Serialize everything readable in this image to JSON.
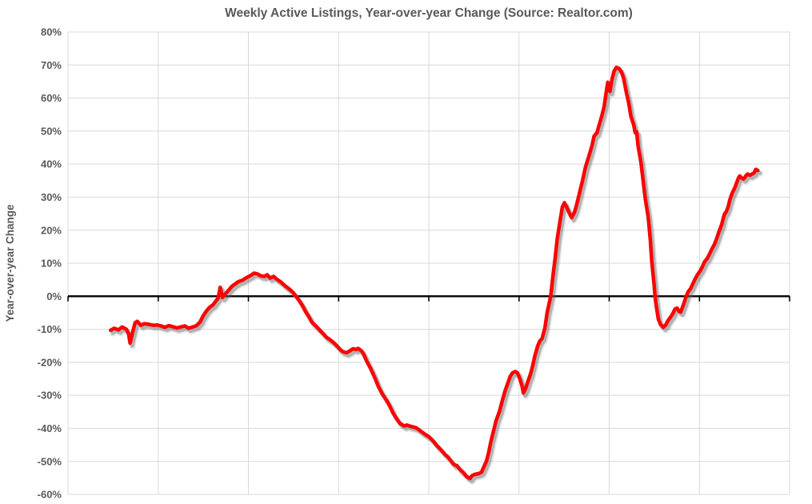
{
  "page": {
    "background_color": "#ffffff"
  },
  "chart_data": {
    "type": "line",
    "title": "Weekly Active Listings, Year-over-year Change (Source: Realtor.com)",
    "xlabel": "",
    "ylabel": "Year-over-year Change",
    "ylim": [
      -60,
      80
    ],
    "y_tick_step": 10,
    "y_tick_labels": [
      "80%",
      "70%",
      "60%",
      "50%",
      "40%",
      "30%",
      "20%",
      "10%",
      "0%",
      "-10%",
      "-20%",
      "-30%",
      "-40%",
      "-50%",
      "-60%"
    ],
    "x_axis": {
      "tick_labels_visible": false,
      "gridline_intervals": 8,
      "zero_axis_color": "#000000",
      "zero_axis_has_tick_marks": true
    },
    "grid": true,
    "gridline_color": "#d9d9d9",
    "legend": "none",
    "title_color": "#595959",
    "axis_text_color": "#595959",
    "series": [
      {
        "name": "Weekly active listings, year-over-year change",
        "color": "#ff0000",
        "line_width": 4.5,
        "drop_shadow": true,
        "x_unit": "fraction of x-axis (no x labels shown in chart)",
        "y_unit": "percent",
        "points": [
          [
            0.059,
            -10.3
          ],
          [
            0.064,
            -9.7
          ],
          [
            0.07,
            -10.2
          ],
          [
            0.075,
            -9.3
          ],
          [
            0.081,
            -10.0
          ],
          [
            0.084,
            -11.5
          ],
          [
            0.086,
            -14.2
          ],
          [
            0.09,
            -10.5
          ],
          [
            0.093,
            -8.0
          ],
          [
            0.096,
            -7.6
          ],
          [
            0.101,
            -8.8
          ],
          [
            0.106,
            -8.3
          ],
          [
            0.112,
            -8.5
          ],
          [
            0.118,
            -8.8
          ],
          [
            0.123,
            -8.7
          ],
          [
            0.129,
            -9.0
          ],
          [
            0.134,
            -9.4
          ],
          [
            0.14,
            -8.9
          ],
          [
            0.145,
            -9.2
          ],
          [
            0.151,
            -9.6
          ],
          [
            0.156,
            -9.3
          ],
          [
            0.162,
            -9.0
          ],
          [
            0.167,
            -9.7
          ],
          [
            0.173,
            -9.3
          ],
          [
            0.178,
            -8.9
          ],
          [
            0.183,
            -7.8
          ],
          [
            0.187,
            -6.0
          ],
          [
            0.192,
            -4.4
          ],
          [
            0.196,
            -3.4
          ],
          [
            0.201,
            -2.6
          ],
          [
            0.205,
            -1.4
          ],
          [
            0.208,
            -0.6
          ],
          [
            0.211,
            2.7
          ],
          [
            0.214,
            -0.4
          ],
          [
            0.218,
            0.7
          ],
          [
            0.223,
            1.9
          ],
          [
            0.227,
            3.0
          ],
          [
            0.232,
            3.8
          ],
          [
            0.236,
            4.4
          ],
          [
            0.242,
            4.9
          ],
          [
            0.247,
            5.6
          ],
          [
            0.253,
            6.3
          ],
          [
            0.258,
            7.0
          ],
          [
            0.263,
            6.7
          ],
          [
            0.267,
            6.2
          ],
          [
            0.272,
            6.0
          ],
          [
            0.276,
            6.5
          ],
          [
            0.28,
            5.5
          ],
          [
            0.285,
            6.0
          ],
          [
            0.289,
            5.2
          ],
          [
            0.295,
            4.3
          ],
          [
            0.3,
            3.3
          ],
          [
            0.306,
            2.3
          ],
          [
            0.312,
            1.1
          ],
          [
            0.316,
            0.0
          ],
          [
            0.32,
            -1.2
          ],
          [
            0.325,
            -2.9
          ],
          [
            0.329,
            -4.6
          ],
          [
            0.334,
            -6.3
          ],
          [
            0.338,
            -7.9
          ],
          [
            0.344,
            -9.1
          ],
          [
            0.349,
            -10.3
          ],
          [
            0.354,
            -11.4
          ],
          [
            0.358,
            -12.4
          ],
          [
            0.364,
            -13.3
          ],
          [
            0.368,
            -14.0
          ],
          [
            0.373,
            -15.1
          ],
          [
            0.377,
            -16.1
          ],
          [
            0.381,
            -16.8
          ],
          [
            0.386,
            -17.1
          ],
          [
            0.39,
            -16.6
          ],
          [
            0.395,
            -15.9
          ],
          [
            0.399,
            -16.1
          ],
          [
            0.402,
            -15.8
          ],
          [
            0.407,
            -16.6
          ],
          [
            0.41,
            -17.7
          ],
          [
            0.414,
            -19.7
          ],
          [
            0.419,
            -21.7
          ],
          [
            0.425,
            -24.6
          ],
          [
            0.43,
            -27.3
          ],
          [
            0.436,
            -29.8
          ],
          [
            0.441,
            -31.4
          ],
          [
            0.446,
            -33.3
          ],
          [
            0.45,
            -35.2
          ],
          [
            0.455,
            -37.0
          ],
          [
            0.46,
            -38.5
          ],
          [
            0.466,
            -39.3
          ],
          [
            0.47,
            -39.0
          ],
          [
            0.475,
            -39.4
          ],
          [
            0.479,
            -39.6
          ],
          [
            0.483,
            -39.9
          ],
          [
            0.489,
            -40.9
          ],
          [
            0.494,
            -41.7
          ],
          [
            0.5,
            -42.5
          ],
          [
            0.506,
            -43.8
          ],
          [
            0.511,
            -45.2
          ],
          [
            0.517,
            -46.5
          ],
          [
            0.522,
            -47.8
          ],
          [
            0.527,
            -48.8
          ],
          [
            0.531,
            -50.0
          ],
          [
            0.535,
            -51.0
          ],
          [
            0.539,
            -51.3
          ],
          [
            0.543,
            -52.4
          ],
          [
            0.548,
            -53.4
          ],
          [
            0.552,
            -54.5
          ],
          [
            0.557,
            -55.2
          ],
          [
            0.56,
            -54.3
          ],
          [
            0.564,
            -53.9
          ],
          [
            0.569,
            -53.7
          ],
          [
            0.573,
            -53.3
          ],
          [
            0.576,
            -51.8
          ],
          [
            0.58,
            -49.8
          ],
          [
            0.583,
            -47.2
          ],
          [
            0.586,
            -44.0
          ],
          [
            0.59,
            -40.5
          ],
          [
            0.593,
            -37.8
          ],
          [
            0.598,
            -34.8
          ],
          [
            0.602,
            -31.5
          ],
          [
            0.606,
            -28.5
          ],
          [
            0.61,
            -26.0
          ],
          [
            0.613,
            -24.2
          ],
          [
            0.616,
            -23.2
          ],
          [
            0.62,
            -22.8
          ],
          [
            0.623,
            -23.2
          ],
          [
            0.626,
            -25.0
          ],
          [
            0.629,
            -27.0
          ],
          [
            0.631,
            -29.3
          ],
          [
            0.634,
            -28.0
          ],
          [
            0.637,
            -26.0
          ],
          [
            0.641,
            -23.5
          ],
          [
            0.644,
            -21.0
          ],
          [
            0.647,
            -18.0
          ],
          [
            0.651,
            -15.0
          ],
          [
            0.654,
            -13.5
          ],
          [
            0.657,
            -12.8
          ],
          [
            0.661,
            -9.5
          ],
          [
            0.664,
            -5.0
          ],
          [
            0.669,
            0.0
          ],
          [
            0.672,
            6.0
          ],
          [
            0.675,
            11.5
          ],
          [
            0.678,
            17.5
          ],
          [
            0.682,
            23.0
          ],
          [
            0.685,
            27.0
          ],
          [
            0.688,
            28.3
          ],
          [
            0.692,
            26.5
          ],
          [
            0.695,
            25.0
          ],
          [
            0.698,
            23.8
          ],
          [
            0.702,
            25.5
          ],
          [
            0.705,
            27.8
          ],
          [
            0.708,
            30.5
          ],
          [
            0.713,
            35.0
          ],
          [
            0.717,
            39.0
          ],
          [
            0.722,
            42.5
          ],
          [
            0.726,
            45.5
          ],
          [
            0.729,
            48.5
          ],
          [
            0.733,
            49.5
          ],
          [
            0.736,
            51.8
          ],
          [
            0.74,
            54.8
          ],
          [
            0.743,
            57.5
          ],
          [
            0.746,
            62.0
          ],
          [
            0.748,
            64.8
          ],
          [
            0.751,
            62.0
          ],
          [
            0.754,
            65.8
          ],
          [
            0.757,
            68.3
          ],
          [
            0.76,
            69.3
          ],
          [
            0.764,
            68.9
          ],
          [
            0.767,
            67.9
          ],
          [
            0.77,
            66.0
          ],
          [
            0.774,
            61.5
          ],
          [
            0.777,
            58.5
          ],
          [
            0.78,
            54.5
          ],
          [
            0.784,
            51.8
          ],
          [
            0.786,
            49.5
          ],
          [
            0.788,
            49.8
          ],
          [
            0.79,
            45.5
          ],
          [
            0.794,
            40.5
          ],
          [
            0.797,
            35.0
          ],
          [
            0.8,
            29.5
          ],
          [
            0.804,
            24.0
          ],
          [
            0.807,
            17.0
          ],
          [
            0.809,
            10.5
          ],
          [
            0.812,
            4.0
          ],
          [
            0.814,
            -1.0
          ],
          [
            0.816,
            -4.0
          ],
          [
            0.818,
            -6.8
          ],
          [
            0.821,
            -8.5
          ],
          [
            0.825,
            -9.4
          ],
          [
            0.828,
            -8.8
          ],
          [
            0.831,
            -7.5
          ],
          [
            0.835,
            -6.3
          ],
          [
            0.838,
            -5.3
          ],
          [
            0.841,
            -3.9
          ],
          [
            0.844,
            -3.6
          ],
          [
            0.847,
            -4.6
          ],
          [
            0.849,
            -4.8
          ],
          [
            0.853,
            -2.5
          ],
          [
            0.856,
            -0.5
          ],
          [
            0.859,
            1.2
          ],
          [
            0.863,
            2.4
          ],
          [
            0.866,
            3.8
          ],
          [
            0.869,
            5.2
          ],
          [
            0.872,
            6.4
          ],
          [
            0.876,
            7.7
          ],
          [
            0.879,
            8.9
          ],
          [
            0.882,
            10.4
          ],
          [
            0.886,
            11.5
          ],
          [
            0.889,
            12.8
          ],
          [
            0.892,
            14.2
          ],
          [
            0.896,
            15.8
          ],
          [
            0.899,
            17.5
          ],
          [
            0.902,
            19.5
          ],
          [
            0.906,
            21.8
          ],
          [
            0.908,
            23.6
          ],
          [
            0.91,
            25.0
          ],
          [
            0.912,
            25.5
          ],
          [
            0.915,
            27.2
          ],
          [
            0.917,
            29.0
          ],
          [
            0.92,
            31.0
          ],
          [
            0.924,
            32.8
          ],
          [
            0.927,
            34.6
          ],
          [
            0.929,
            35.8
          ],
          [
            0.931,
            36.4
          ],
          [
            0.933,
            35.9
          ],
          [
            0.936,
            35.5
          ],
          [
            0.938,
            36.0
          ],
          [
            0.94,
            36.7
          ],
          [
            0.942,
            37.0
          ],
          [
            0.945,
            36.6
          ],
          [
            0.947,
            36.9
          ],
          [
            0.949,
            37.1
          ],
          [
            0.951,
            37.4
          ],
          [
            0.953,
            38.4
          ],
          [
            0.956,
            38.1
          ]
        ]
      }
    ]
  }
}
